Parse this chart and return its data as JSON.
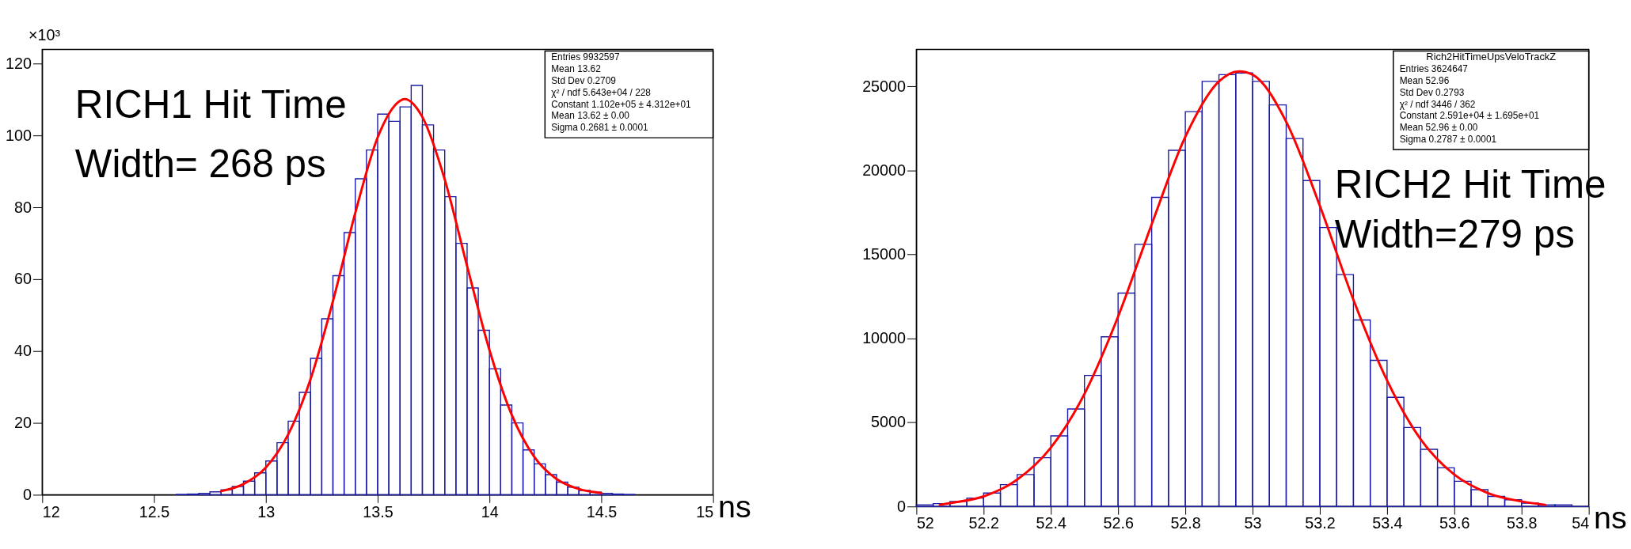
{
  "chart_data": [
    {
      "type": "histogram",
      "ylabel": "×10³",
      "xlabel": "ns",
      "color": "#1c1ca8",
      "bins": [
        12.6,
        12.65,
        12.7,
        12.75,
        12.8,
        12.85,
        12.9,
        12.95,
        13.0,
        13.05,
        13.1,
        13.15,
        13.2,
        13.25,
        13.3,
        13.35,
        13.4,
        13.45,
        13.5,
        13.55,
        13.6,
        13.65,
        13.7,
        13.75,
        13.8,
        13.85,
        13.9,
        13.95,
        14.0,
        14.05,
        14.1,
        14.15,
        14.2,
        14.25,
        14.3,
        14.35,
        14.4,
        14.45,
        14.5,
        14.55,
        14.6,
        14.65
      ],
      "values": [
        0.1,
        0.2,
        0.4,
        0.8,
        1.4,
        2.3,
        3.8,
        6.1,
        9.4,
        14.5,
        20.5,
        28.5,
        38,
        49,
        61,
        73,
        88,
        96,
        106,
        104,
        108,
        114,
        103,
        96,
        83,
        70,
        57.6,
        45.8,
        35.1,
        25,
        20,
        12.5,
        8.6,
        5.6,
        3.5,
        2.1,
        1.2,
        0.7,
        0.4,
        0.2,
        0.1
      ],
      "series": [
        {
          "type": "line",
          "color": "#ff0000",
          "x": [
            12.8,
            12.9,
            13.0,
            13.1,
            13.2,
            13.3,
            13.4,
            13.5,
            13.6,
            13.62,
            13.7,
            13.8,
            13.9,
            14.0,
            14.1,
            14.2,
            14.3,
            14.4,
            14.5
          ],
          "values": [
            1.0,
            3.0,
            7.6,
            16.8,
            32.2,
            53.9,
            78.5,
            99.5,
            109.7,
            110.2,
            105.2,
            87.8,
            63.7,
            40.3,
            22.2,
            10.6,
            4.4,
            1.6,
            0.5
          ]
        }
      ],
      "xlim": [
        12,
        15
      ],
      "ylim": [
        0,
        124
      ],
      "xticks": [
        12,
        12.5,
        13,
        13.5,
        14,
        14.5,
        15
      ],
      "yticks": [
        0,
        20,
        40,
        60,
        80,
        100,
        120
      ],
      "annotations": [
        "RICH1 Hit Time",
        "Width= 268 ps",
        "Entries 9932597",
        "Mean 13.62",
        "Std Dev 0.2709",
        "χ² / ndf 5.643e+04 / 228",
        "Constant 1.102e+05 ± 4.312e+01",
        "Mean 13.62 ± 0.00",
        "Sigma 0.2681 ± 0.0001"
      ]
    },
    {
      "type": "histogram",
      "xlabel": "ns",
      "color": "#1c1ca8",
      "bins": [
        52.0,
        52.05,
        52.1,
        52.15,
        52.2,
        52.25,
        52.3,
        52.35,
        52.4,
        52.45,
        52.5,
        52.55,
        52.6,
        52.65,
        52.7,
        52.75,
        52.8,
        52.85,
        52.9,
        52.95,
        53.0,
        53.05,
        53.1,
        53.15,
        53.2,
        53.25,
        53.3,
        53.35,
        53.4,
        53.45,
        53.5,
        53.55,
        53.6,
        53.65,
        53.7,
        53.75,
        53.8,
        53.85,
        53.9,
        53.95,
        54.0
      ],
      "values": [
        100,
        170,
        300,
        500,
        800,
        1300,
        1900,
        2900,
        4200,
        5800,
        7800,
        10100,
        12700,
        15600,
        18400,
        21200,
        23500,
        25300,
        25700,
        25800,
        25300,
        23900,
        21900,
        19400,
        16600,
        13800,
        11100,
        8700,
        6500,
        4700,
        3400,
        2300,
        1500,
        1000,
        600,
        400,
        200,
        100,
        100,
        0
      ],
      "series": [
        {
          "type": "line",
          "color": "#ff0000",
          "x": [
            52.07,
            52.1,
            52.2,
            52.3,
            52.4,
            52.5,
            52.6,
            52.7,
            52.8,
            52.9,
            52.96,
            53.0,
            53.1,
            53.2,
            53.3,
            53.4,
            53.5,
            53.6,
            53.7,
            53.8,
            53.87
          ],
          "values": [
            100,
            200,
            600,
            1600,
            3500,
            6700,
            11300,
            16800,
            22000,
            25300,
            25900,
            25700,
            22900,
            17900,
            12300,
            7500,
            4000,
            1900,
            800,
            300,
            100
          ]
        }
      ],
      "xlim": [
        52,
        54
      ],
      "ylim": [
        0,
        27200
      ],
      "xticks": [
        52,
        52.2,
        52.4,
        52.6,
        52.8,
        53,
        53.2,
        53.4,
        53.6,
        53.8,
        54
      ],
      "yticks": [
        0,
        5000,
        10000,
        15000,
        20000,
        25000
      ],
      "annotations": [
        "RICH2 Hit Time",
        "Width=279 ps",
        "Rich2HitTimeUpsVeloTrackZ",
        "Entries 3624647",
        "Mean 52.96",
        "Std Dev 0.2793",
        "χ² / ndf 3446 / 362",
        "Constant 2.591e+04 ± 1.695e+01",
        "Mean 52.96 ± 0.00",
        "Sigma 0.2787 ± 0.0001"
      ]
    }
  ]
}
